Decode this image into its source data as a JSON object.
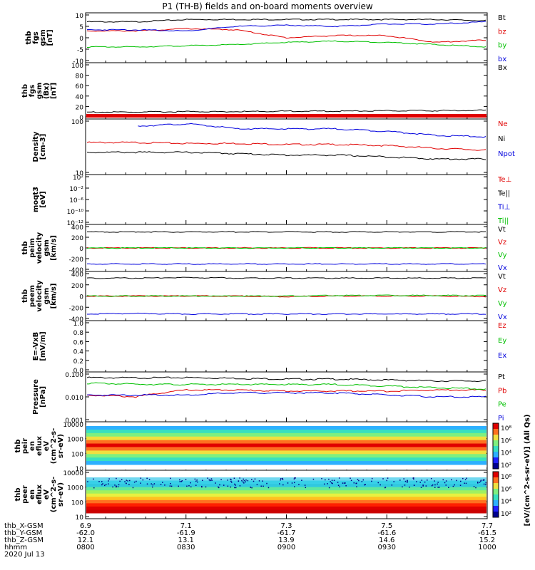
{
  "title": "P1 (TH-B) fields and on-board moments overview",
  "chart_data": [
    {
      "id": "fgs",
      "type": "line",
      "ylabel": [
        "thb",
        "fgs",
        "gsm",
        "[nT]"
      ],
      "ylim": [
        -10,
        10
      ],
      "yticks": [
        "10",
        "5",
        "0",
        "-5",
        "-10"
      ],
      "series": [
        {
          "name": "Bt",
          "color": "#000000",
          "values": [
            7,
            7,
            8,
            8,
            8,
            8,
            8,
            8,
            7.5
          ]
        },
        {
          "name": "bz",
          "color": "#e00000",
          "values": [
            3,
            3,
            4,
            3.5,
            0,
            1,
            1,
            -2,
            -1
          ]
        },
        {
          "name": "by",
          "color": "#00c000",
          "values": [
            -4,
            -4,
            -3.5,
            -3,
            -2,
            -1.5,
            -2,
            -3,
            -4
          ]
        },
        {
          "name": "bx",
          "color": "#0000dd",
          "values": [
            3.5,
            3.5,
            3,
            5,
            5.5,
            5,
            6,
            6,
            7
          ]
        }
      ]
    },
    {
      "id": "fgs-zoom",
      "type": "line",
      "ylabel": [
        "thb",
        "fgs",
        "gsm",
        "(Bx)",
        "[nT]"
      ],
      "ylim": [
        -10,
        100
      ],
      "yticks": [
        "100",
        "80",
        "60",
        "40",
        "20",
        "0"
      ],
      "series": [
        {
          "name": "Bx",
          "color": "#000000",
          "values": [
            0,
            0,
            1,
            1,
            2,
            2,
            3,
            3,
            4
          ]
        }
      ]
    },
    {
      "id": "density",
      "type": "line",
      "ylabel": [
        "Density",
        "[cm-3]"
      ],
      "ylim": [
        1,
        200
      ],
      "log": true,
      "yticks": [
        "100",
        "10"
      ],
      "series": [
        {
          "name": "Ne",
          "color": "#e00000",
          "values": [
            22,
            22,
            20,
            20,
            18,
            18,
            16,
            12,
            10
          ]
        },
        {
          "name": "Ni",
          "color": "#000000",
          "values": [
            8,
            8,
            8,
            7,
            6,
            6,
            5,
            4,
            4
          ]
        },
        {
          "name": "Npot",
          "color": "#0000dd",
          "values": [
            null,
            120,
            150,
            90,
            90,
            90,
            70,
            45,
            40
          ]
        }
      ]
    },
    {
      "id": "temperature",
      "type": "line",
      "ylabel": [
        "moqt3",
        "[eV]"
      ],
      "yticks": [
        "10²",
        "10⁻²",
        "10⁻⁶",
        "10⁻¹⁰",
        "10⁻¹²"
      ],
      "series": [
        {
          "name": "Te⊥",
          "color": "#e00000",
          "values": []
        },
        {
          "name": "Te||",
          "color": "#000000",
          "values": []
        },
        {
          "name": "Ti⊥",
          "color": "#0000dd",
          "values": []
        },
        {
          "name": "Ti||",
          "color": "#00c000",
          "values": []
        }
      ]
    },
    {
      "id": "peim-velocity",
      "type": "line",
      "ylabel": [
        "thb",
        "peim",
        "velocity",
        "gsm",
        "[km/s]"
      ],
      "ylim": [
        -400,
        400
      ],
      "yticks": [
        "400",
        "200",
        "0",
        "-200",
        "-400"
      ],
      "series": [
        {
          "name": "Vt",
          "color": "#000000",
          "values": [
            300,
            300,
            300,
            300,
            300,
            300,
            300,
            300,
            300
          ]
        },
        {
          "name": "Vz",
          "color": "#e00000",
          "values": [
            0,
            0,
            0,
            0,
            0,
            0,
            0,
            0,
            0
          ]
        },
        {
          "name": "Vy",
          "color": "#00c000",
          "values": [
            0,
            0,
            0,
            0,
            0,
            0,
            0,
            0,
            0
          ]
        },
        {
          "name": "Vx",
          "color": "#0000dd",
          "values": [
            -300,
            -300,
            -300,
            -300,
            -300,
            -300,
            -300,
            -300,
            -300
          ]
        }
      ]
    },
    {
      "id": "peem-velocity",
      "type": "line",
      "ylabel": [
        "thb",
        "peem",
        "velocity",
        "gsm",
        "[km/s]"
      ],
      "ylim": [
        -400,
        400
      ],
      "yticks": [
        "400",
        "200",
        "0",
        "-200",
        "-400"
      ],
      "series": [
        {
          "name": "Vt",
          "color": "#000000",
          "values": [
            320,
            320,
            330,
            320,
            320,
            320,
            320,
            320,
            320
          ]
        },
        {
          "name": "Vz",
          "color": "#e00000",
          "values": [
            0,
            0,
            0,
            0,
            -10,
            0,
            0,
            0,
            -10
          ]
        },
        {
          "name": "Vy",
          "color": "#00c000",
          "values": [
            0,
            0,
            0,
            0,
            0,
            10,
            10,
            10,
            10
          ]
        },
        {
          "name": "Vx",
          "color": "#0000dd",
          "values": [
            -320,
            -310,
            -320,
            -320,
            -320,
            -320,
            -320,
            -320,
            -320
          ]
        }
      ]
    },
    {
      "id": "efield",
      "type": "line",
      "ylabel": [
        "E=-VxB",
        "[mV/m]"
      ],
      "yticks": [
        "1.0",
        "0.8",
        "0.6",
        "0.4",
        "0.2",
        "0.0"
      ],
      "series": [
        {
          "name": "Ez",
          "color": "#e00000",
          "values": []
        },
        {
          "name": "Ey",
          "color": "#00c000",
          "values": []
        },
        {
          "name": "Ex",
          "color": "#0000dd",
          "values": []
        }
      ]
    },
    {
      "id": "pressure",
      "type": "line",
      "ylabel": [
        "Pressure",
        "[nPa]"
      ],
      "log": true,
      "ylim": [
        0.001,
        0.1
      ],
      "yticks": [
        "0.100",
        "0.010",
        "0.001"
      ],
      "series": [
        {
          "name": "Pt",
          "color": "#000000",
          "values": [
            0.07,
            0.068,
            0.07,
            0.065,
            0.06,
            0.06,
            0.055,
            0.05,
            0.05
          ]
        },
        {
          "name": "Pb",
          "color": "#e00000",
          "values": [
            0.012,
            0.01,
            0.02,
            0.02,
            0.018,
            0.018,
            0.018,
            0.02,
            0.02
          ]
        },
        {
          "name": "Pe",
          "color": "#00c000",
          "values": [
            0.04,
            0.036,
            0.035,
            0.035,
            0.035,
            0.035,
            0.03,
            0.025,
            0.022
          ]
        },
        {
          "name": "Pi",
          "color": "#0000dd",
          "values": [
            0.012,
            0.012,
            0.012,
            0.015,
            0.015,
            0.015,
            0.012,
            0.01,
            0.01
          ]
        }
      ]
    },
    {
      "id": "peir-spectrogram",
      "type": "heatmap",
      "ylabel": [
        "thb",
        "peir",
        "en",
        "eflux",
        "eV",
        "(cm^2-s-",
        "sr-eV)"
      ],
      "yticks": [
        "10000",
        "1000",
        "100",
        "10"
      ],
      "colorbar_ticks": [
        "10⁸",
        "10⁶",
        "10⁴",
        "10²"
      ]
    },
    {
      "id": "peer-spectrogram",
      "type": "heatmap",
      "ylabel": [
        "thb",
        "peer",
        "en",
        "eflux",
        "eV",
        "(cm^2-s-",
        "sr-eV)"
      ],
      "yticks": [
        "10000",
        "1000",
        "100",
        "10"
      ],
      "colorbar_ticks": [
        "10⁸",
        "10⁶",
        "10⁴",
        "10²"
      ]
    }
  ],
  "colorbar_label": "[eV/(cm^2-s-sr-eV)] (All Qs)",
  "xaxis": {
    "row_labels": [
      "thb_X-GSM",
      "thb_Y-GSM",
      "thb_Z-GSM",
      "hhmm",
      "2020 Jul 13"
    ],
    "columns": [
      [
        "6.9",
        "-62.0",
        "12.1",
        "0800"
      ],
      [
        "7.1",
        "-61.9",
        "13.1",
        "0830"
      ],
      [
        "7.3",
        "-61.7",
        "13.9",
        "0900"
      ],
      [
        "7.5",
        "-61.6",
        "14.6",
        "0930"
      ],
      [
        "7.7",
        "-61.5",
        "15.2",
        "1000"
      ]
    ]
  }
}
